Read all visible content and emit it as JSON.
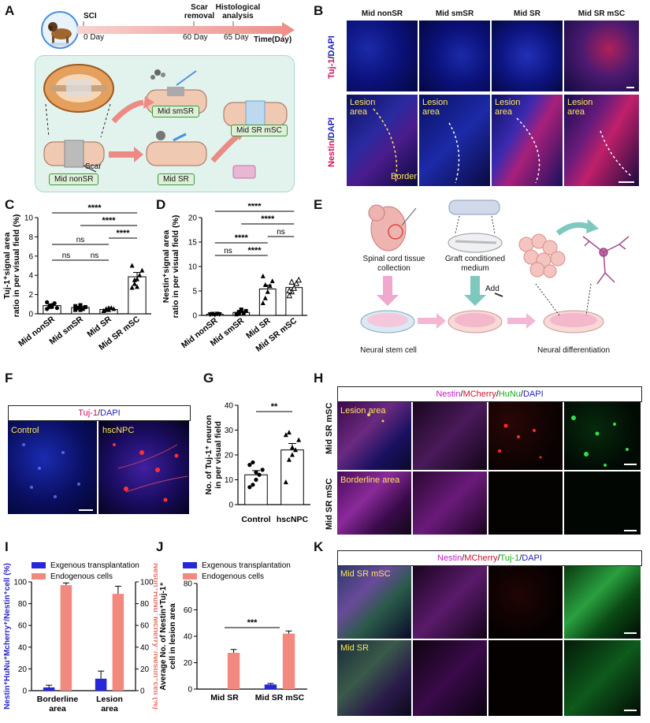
{
  "panels": {
    "A": {
      "label": "A",
      "timeline": {
        "events": [
          {
            "name": "SCI",
            "time": "0 Day"
          },
          {
            "name": "Scar removal",
            "time": "60 Day"
          },
          {
            "name": "Histological analysis",
            "time": "65 Day"
          }
        ],
        "axis_label": "Time(Day)"
      },
      "groups": [
        "Mid smSR",
        "Mid SR mSC",
        "Mid nonSR",
        "Mid SR"
      ],
      "scar_label": "Scar"
    },
    "B": {
      "label": "B",
      "columns": [
        "Mid nonSR",
        "Mid smSR",
        "Mid SR",
        "Mid SR mSC"
      ],
      "row1_stain": {
        "marker": "Tuj-1",
        "sep": "/",
        "counter": "DAPI"
      },
      "row2_stain": {
        "marker": "Nestin",
        "sep": "/",
        "counter": "DAPI"
      },
      "lesion_label": "Lesion area",
      "border_label": "Border"
    },
    "C": {
      "label": "C"
    },
    "D": {
      "label": "D"
    },
    "E": {
      "label": "E",
      "texts": {
        "tissue": "Spinal cord tissue collection",
        "medium": "Graft conditioned medium",
        "add": "Add",
        "nsc": "Neural stem cell",
        "diff": "Neural differentiation"
      }
    },
    "F": {
      "label": "F",
      "title": {
        "marker": "Tuj-1",
        "sep": "/",
        "counter": "DAPI"
      },
      "left": "Control",
      "right": "hscNPC"
    },
    "G": {
      "label": "G"
    },
    "H": {
      "label": "H",
      "title": {
        "a": "Nestin",
        "b": "MCherry",
        "c": "HuNu",
        "d": "DAPI"
      },
      "rows": [
        "Mid SR mSC",
        "Mid SR mSC"
      ],
      "row_tags": [
        "Lesion area",
        "Borderline area"
      ]
    },
    "I": {
      "label": "I"
    },
    "J": {
      "label": "J"
    },
    "K": {
      "label": "K",
      "title": {
        "a": "Nestin",
        "b": "MCherry",
        "c": "Tuj-1",
        "d": "DAPI"
      },
      "row_tags": [
        "Mid SR mSC",
        "Mid SR"
      ]
    }
  },
  "chart_data": [
    {
      "id": "C",
      "type": "bar",
      "categories": [
        "Mid nonSR",
        "Mid smSR",
        "Mid SR",
        "Mid SR mSC"
      ],
      "values": [
        0.85,
        0.65,
        0.45,
        3.85
      ],
      "errors": [
        0.18,
        0.13,
        0.1,
        0.45
      ],
      "points": [
        [
          0.5,
          0.7,
          0.9,
          1.1,
          0.6,
          1.2,
          0.8,
          0.7
        ],
        [
          0.4,
          0.6,
          0.9,
          0.5,
          0.7,
          0.8,
          0.6,
          0.4
        ],
        [
          0.3,
          0.5,
          0.4,
          0.6,
          0.5,
          0.3,
          0.4,
          0.6
        ],
        [
          2.7,
          3.1,
          3.6,
          4.0,
          4.5,
          5.0,
          3.5,
          2.8
        ]
      ],
      "ylabel": "Tuj-1⁺signal area ratio in per visual field (%)",
      "yticks": [
        0,
        2,
        4,
        6,
        8,
        10
      ],
      "ylim": [
        0,
        10
      ],
      "significance": [
        {
          "from": 0,
          "to": 1,
          "label": "ns"
        },
        {
          "from": 1,
          "to": 2,
          "label": "ns"
        },
        {
          "from": 0,
          "to": 2,
          "label": "ns"
        },
        {
          "from": 2,
          "to": 3,
          "label": "****"
        },
        {
          "from": 1,
          "to": 3,
          "label": "****"
        },
        {
          "from": 0,
          "to": 3,
          "label": "****"
        }
      ]
    },
    {
      "id": "D",
      "type": "bar",
      "categories": [
        "Mid nonSR",
        "Mid smSR",
        "Mid SR",
        "Mid SR mSC"
      ],
      "values": [
        0.25,
        0.6,
        5.4,
        5.7
      ],
      "errors": [
        0.08,
        0.2,
        0.8,
        0.7
      ],
      "points": [
        [
          0.2,
          0.3,
          0.1,
          0.35,
          0.25,
          0.2,
          0.3
        ],
        [
          0.2,
          0.4,
          1.2,
          0.5,
          0.9,
          0.3,
          0.7
        ],
        [
          2.5,
          3.5,
          4.8,
          6.0,
          7.0,
          8.0,
          6.2
        ],
        [
          4.0,
          4.8,
          5.5,
          6.5,
          7.2,
          5.0,
          6.8
        ]
      ],
      "ylabel": "Nestin⁺signal area ratio in per visual field (%)",
      "yticks": [
        0,
        5,
        10,
        15,
        20
      ],
      "ylim": [
        0,
        20
      ],
      "significance": [
        {
          "from": 0,
          "to": 1,
          "label": "ns"
        },
        {
          "from": 1,
          "to": 2,
          "label": "****"
        },
        {
          "from": 0,
          "to": 2,
          "label": "****"
        },
        {
          "from": 2,
          "to": 3,
          "label": "ns"
        },
        {
          "from": 1,
          "to": 3,
          "label": "****"
        },
        {
          "from": 0,
          "to": 3,
          "label": "****"
        }
      ]
    },
    {
      "id": "G",
      "type": "bar",
      "categories": [
        "Control",
        "hscNPC"
      ],
      "values": [
        12,
        22
      ],
      "errors": [
        1.7,
        2.6
      ],
      "points": [
        [
          7,
          8,
          10,
          12,
          14,
          16,
          17,
          13
        ],
        [
          9,
          18,
          20,
          22,
          26,
          28,
          29,
          23
        ]
      ],
      "ylabel": "No. of Tuj-1⁺ neuron in per visual field",
      "yticks": [
        0,
        10,
        20,
        30,
        40
      ],
      "ylim": [
        0,
        40
      ],
      "significance": [
        {
          "from": 0,
          "to": 1,
          "label": "**"
        }
      ]
    },
    {
      "id": "I",
      "type": "bar",
      "categories": [
        "Borderline area",
        "Lesion area"
      ],
      "series": [
        {
          "name": "Exgenous transplantation",
          "values": [
            3,
            11
          ],
          "errors": [
            2,
            7
          ],
          "color": "#2727d9"
        },
        {
          "name": "Endogenous cells",
          "values": [
            97,
            89
          ],
          "errors": [
            2,
            7
          ],
          "color": "#f2897f"
        }
      ],
      "ylabel_left": "Nestin⁺HuNu⁺Mcherry⁺/Nestin⁺cell (%)",
      "ylabel_right": "Nestin⁺HuNu⁻Mcherry⁻/Nestin⁺cell (%)",
      "yticks": [
        0,
        20,
        40,
        60,
        80,
        100
      ],
      "ylim": [
        0,
        100
      ]
    },
    {
      "id": "J",
      "type": "bar",
      "categories": [
        "Mid SR",
        "Mid SR mSC"
      ],
      "series": [
        {
          "name": "Exgenous transplantation",
          "values": [
            0,
            3.5
          ],
          "errors": [
            0,
            0.8
          ],
          "color": "#2727d9"
        },
        {
          "name": "Endogenous cells",
          "values": [
            27.5,
            42
          ],
          "errors": [
            2.5,
            2
          ],
          "color": "#f2897f"
        }
      ],
      "ylabel": "Average No. of Nestin⁺Tuj-1⁺ cell in lesion area",
      "yticks": [
        0,
        20,
        40,
        60,
        80
      ],
      "ylim": [
        0,
        80
      ],
      "significance": [
        {
          "from": 0,
          "to": 1,
          "label": "***"
        }
      ]
    }
  ]
}
